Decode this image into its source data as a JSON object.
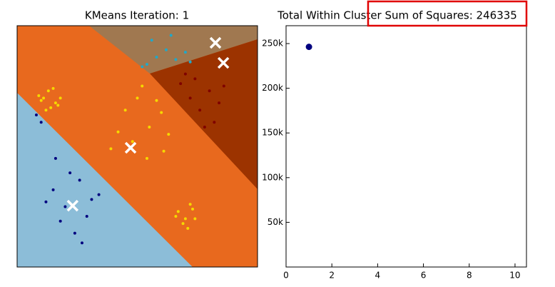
{
  "chart_data": [
    {
      "type": "scatter",
      "title": "KMeans Iteration: 1",
      "xlim": [
        0,
        10
      ],
      "ylim": [
        0,
        10
      ],
      "clusters": [
        {
          "color": "#f5d800",
          "x": [
            1.0,
            1.3,
            1.6,
            1.8,
            1.2,
            0.9,
            1.5,
            1.4,
            1.1,
            1.7
          ],
          "y": [
            6.9,
            7.3,
            6.8,
            7.0,
            6.5,
            7.1,
            7.4,
            6.6,
            7.0,
            6.7
          ]
        },
        {
          "color": "#00007f",
          "x": [
            1.5,
            2.0,
            2.6,
            3.1,
            1.8,
            2.4,
            2.9,
            1.2,
            3.4,
            2.2,
            2.7,
            1.6,
            0.8,
            1.0
          ],
          "y": [
            3.2,
            2.5,
            3.6,
            2.8,
            1.9,
            1.4,
            2.1,
            2.7,
            3.0,
            3.9,
            1.0,
            4.5,
            6.3,
            6.0
          ]
        },
        {
          "color": "#f5d800",
          "x": [
            6.7,
            7.0,
            7.3,
            6.9,
            7.2,
            6.6,
            7.1,
            7.4
          ],
          "y": [
            2.3,
            2.0,
            2.4,
            1.8,
            2.6,
            2.1,
            1.6,
            2.0
          ]
        },
        {
          "color": "#f5d800",
          "x": [
            4.5,
            5.0,
            5.5,
            6.0,
            6.3,
            4.8,
            5.2,
            5.8,
            4.2,
            6.1,
            5.4,
            3.9
          ],
          "y": [
            6.5,
            7.0,
            5.8,
            6.4,
            5.5,
            5.2,
            7.5,
            6.9,
            5.6,
            4.8,
            4.5,
            4.9
          ]
        },
        {
          "color": "#7f0000",
          "x": [
            6.8,
            7.2,
            7.6,
            8.0,
            8.4,
            7.0,
            7.8,
            8.2,
            7.4,
            8.6
          ],
          "y": [
            7.6,
            7.0,
            6.5,
            7.3,
            6.8,
            8.0,
            5.8,
            6.0,
            7.8,
            7.5
          ]
        },
        {
          "color": "#20a8c8",
          "x": [
            5.4,
            5.8,
            6.2,
            6.6,
            7.0,
            5.6,
            6.4,
            7.2,
            5.2
          ],
          "y": [
            8.4,
            8.7,
            9.0,
            8.6,
            8.9,
            9.4,
            9.6,
            8.5,
            8.3
          ]
        }
      ],
      "centroids": {
        "color": "#ffffff",
        "x": [
          8.25,
          8.58,
          4.72,
          2.31
        ],
        "y": [
          9.29,
          8.46,
          4.94,
          2.54
        ]
      }
    },
    {
      "type": "line",
      "title": "Total Within Cluster Sum of Squares: 246335",
      "x": [
        1
      ],
      "series": [
        {
          "color": "#00007f",
          "values": [
            246335
          ]
        }
      ],
      "xlim": [
        0,
        10.5
      ],
      "xticks": [
        0,
        2,
        4,
        6,
        8,
        10
      ],
      "ylim": [
        0,
        270000
      ],
      "yticks": [
        {
          "value": 50000,
          "label": "50k"
        },
        {
          "value": 100000,
          "label": "100k"
        },
        {
          "value": 150000,
          "label": "150k"
        },
        {
          "value": 200000,
          "label": "200k"
        },
        {
          "value": 250000,
          "label": "250k"
        }
      ]
    }
  ]
}
